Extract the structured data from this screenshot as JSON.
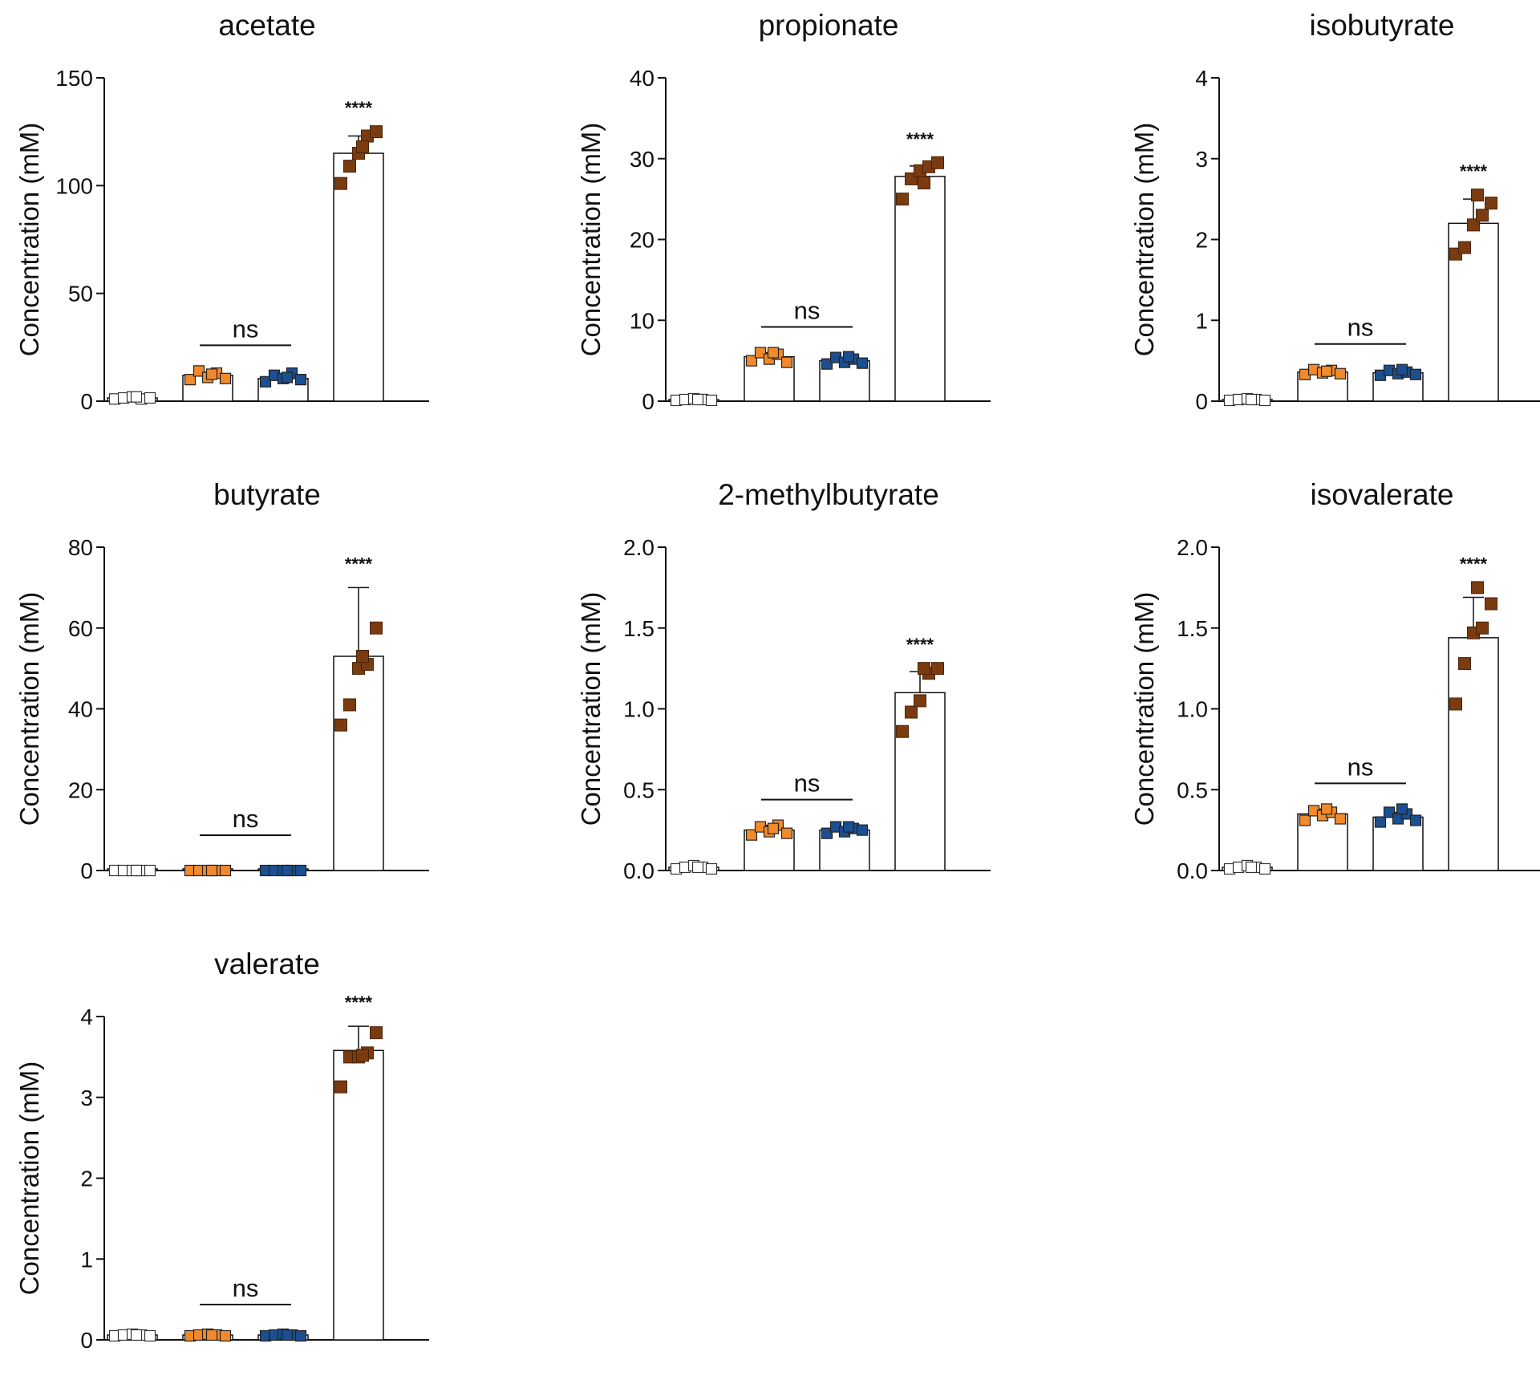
{
  "figure": {
    "colors": {
      "control": "#ffffff",
      "orange": "#f28a2b",
      "blue": "#1b4f8f",
      "brown": "#7a3b10",
      "axis": "#111111"
    }
  },
  "chart_data": [
    {
      "type": "bar",
      "title": "acetate",
      "ylabel": "Concentration (mM)",
      "ylim": [
        0,
        150
      ],
      "yticks": [
        "0",
        "50",
        "100",
        "150"
      ],
      "groups": [
        "control",
        "orange",
        "blue",
        "brown"
      ],
      "means": [
        1.5,
        12,
        10.5,
        115
      ],
      "errors": [
        0.5,
        1.5,
        1.5,
        8
      ],
      "points": [
        [
          1,
          1.5,
          2,
          1,
          1.5,
          2
        ],
        [
          10,
          14,
          11,
          13,
          10.5,
          12.5
        ],
        [
          9,
          12,
          10.5,
          13,
          10,
          11
        ],
        [
          101,
          109,
          115,
          123,
          125,
          118
        ]
      ],
      "ns_label": "ns",
      "sig_label": "****"
    },
    {
      "type": "bar",
      "title": "propionate",
      "ylabel": "Concentration (mM)",
      "ylim": [
        0,
        40
      ],
      "yticks": [
        "0",
        "10",
        "20",
        "30",
        "40"
      ],
      "groups": [
        "control",
        "orange",
        "blue",
        "brown"
      ],
      "means": [
        0.2,
        5.5,
        5,
        27.8
      ],
      "errors": [
        0.2,
        0.5,
        0.4,
        1.3
      ],
      "points": [
        [
          0.1,
          0.2,
          0.3,
          0.2,
          0.1,
          0.2
        ],
        [
          5,
          6,
          5.2,
          5.8,
          4.8,
          6
        ],
        [
          4.6,
          5.4,
          4.8,
          5.2,
          4.7,
          5.5
        ],
        [
          25,
          27.5,
          28.5,
          29,
          29.5,
          27
        ]
      ],
      "ns_label": "ns",
      "sig_label": "****"
    },
    {
      "type": "bar",
      "title": "isobutyrate",
      "ylabel": "Concentration (mM)",
      "ylim": [
        0,
        4
      ],
      "yticks": [
        "0",
        "1",
        "2",
        "3",
        "4"
      ],
      "groups": [
        "control",
        "orange",
        "blue",
        "brown"
      ],
      "means": [
        0.02,
        0.36,
        0.35,
        2.2
      ],
      "errors": [
        0.01,
        0.03,
        0.04,
        0.3
      ],
      "points": [
        [
          0.01,
          0.02,
          0.03,
          0.02,
          0.01,
          0.02
        ],
        [
          0.33,
          0.39,
          0.35,
          0.38,
          0.34,
          0.37
        ],
        [
          0.32,
          0.38,
          0.34,
          0.36,
          0.33,
          0.39
        ],
        [
          1.82,
          1.9,
          2.18,
          2.3,
          2.45,
          2.55
        ]
      ],
      "ns_label": "ns",
      "sig_label": "****"
    },
    {
      "type": "bar",
      "title": "butyrate",
      "ylabel": "Concentration (mM)",
      "ylim": [
        0,
        80
      ],
      "yticks": [
        "0",
        "20",
        "40",
        "60",
        "80"
      ],
      "groups": [
        "control",
        "orange",
        "blue",
        "brown"
      ],
      "means": [
        0,
        0,
        0,
        53
      ],
      "errors": [
        0,
        0,
        0,
        17
      ],
      "points": [
        [
          0,
          0,
          0,
          0,
          0,
          0
        ],
        [
          0,
          0,
          0,
          0,
          0,
          0
        ],
        [
          0,
          0,
          0,
          0,
          0,
          0
        ],
        [
          36,
          41,
          50,
          51,
          60,
          53
        ]
      ],
      "ns_label": "ns",
      "sig_label": "****"
    },
    {
      "type": "bar",
      "title": "2-methylbutyrate",
      "ylabel": "Concentration (mM)",
      "ylim": [
        0,
        2.0
      ],
      "yticks": [
        "0.0",
        "0.5",
        "1.0",
        "1.5",
        "2.0"
      ],
      "groups": [
        "control",
        "orange",
        "blue",
        "brown"
      ],
      "means": [
        0.02,
        0.25,
        0.25,
        1.1
      ],
      "errors": [
        0.01,
        0.03,
        0.02,
        0.13
      ],
      "points": [
        [
          0.01,
          0.02,
          0.03,
          0.02,
          0.01,
          0.02
        ],
        [
          0.22,
          0.27,
          0.24,
          0.28,
          0.23,
          0.26
        ],
        [
          0.23,
          0.27,
          0.24,
          0.26,
          0.25,
          0.27
        ],
        [
          0.86,
          0.98,
          1.05,
          1.22,
          1.25,
          1.25
        ]
      ],
      "ns_label": "ns",
      "sig_label": "****"
    },
    {
      "type": "bar",
      "title": "isovalerate",
      "ylabel": "Concentration (mM)",
      "ylim": [
        0,
        2.0
      ],
      "yticks": [
        "0.0",
        "0.5",
        "1.0",
        "1.5",
        "2.0"
      ],
      "groups": [
        "control",
        "orange",
        "blue",
        "brown"
      ],
      "means": [
        0.02,
        0.35,
        0.33,
        1.44
      ],
      "errors": [
        0.01,
        0.03,
        0.03,
        0.25
      ],
      "points": [
        [
          0.01,
          0.02,
          0.03,
          0.02,
          0.01,
          0.02
        ],
        [
          0.31,
          0.37,
          0.34,
          0.36,
          0.32,
          0.38
        ],
        [
          0.3,
          0.36,
          0.32,
          0.35,
          0.31,
          0.38
        ],
        [
          1.03,
          1.28,
          1.47,
          1.5,
          1.65,
          1.75
        ]
      ],
      "ns_label": "ns",
      "sig_label": "****"
    },
    {
      "type": "bar",
      "title": "valerate",
      "ylabel": "Concentration (mM)",
      "ylim": [
        0,
        4
      ],
      "yticks": [
        "0",
        "1",
        "2",
        "3",
        "4"
      ],
      "groups": [
        "control",
        "orange",
        "blue",
        "brown"
      ],
      "means": [
        0.06,
        0.06,
        0.06,
        3.58
      ],
      "errors": [
        0.01,
        0.01,
        0.01,
        0.3
      ],
      "points": [
        [
          0.05,
          0.06,
          0.07,
          0.06,
          0.05,
          0.06
        ],
        [
          0.05,
          0.06,
          0.07,
          0.06,
          0.05,
          0.06
        ],
        [
          0.05,
          0.06,
          0.07,
          0.06,
          0.05,
          0.06
        ],
        [
          3.13,
          3.5,
          3.5,
          3.55,
          3.8,
          3.52
        ]
      ],
      "ns_label": "ns",
      "sig_label": "****"
    }
  ]
}
